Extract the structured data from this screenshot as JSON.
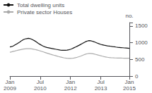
{
  "chart_data": {
    "type": "line",
    "ylabel": "no.",
    "categories": [
      "Jan\n2009",
      null,
      null,
      null,
      null,
      null,
      null,
      null,
      null,
      null,
      null,
      null,
      null,
      null,
      null,
      null,
      null,
      null,
      "Jul\n2010",
      null,
      null,
      null,
      null,
      null,
      null,
      null,
      null,
      null,
      null,
      null,
      null,
      null,
      null,
      null,
      null,
      null,
      "Jan\n2012",
      null,
      null,
      null,
      null,
      null,
      null,
      null,
      null,
      null,
      null,
      null,
      null,
      null,
      null,
      null,
      null,
      null,
      "Jul\n2013",
      null,
      null,
      null,
      null,
      null,
      null,
      null,
      null,
      null,
      null,
      null,
      null,
      null,
      null,
      null,
      null,
      "Jan\n2015"
    ],
    "series": [
      {
        "name": "Total dwelling units",
        "color": "#111111",
        "values": [
          870,
          880,
          900,
          930,
          960,
          990,
          1020,
          1060,
          1090,
          1110,
          1120,
          1130,
          1120,
          1100,
          1075,
          1045,
          1010,
          975,
          945,
          915,
          890,
          870,
          855,
          845,
          835,
          825,
          815,
          805,
          795,
          785,
          778,
          772,
          770,
          772,
          778,
          788,
          800,
          820,
          845,
          868,
          892,
          918,
          945,
          972,
          1000,
          1028,
          1048,
          1062,
          1055,
          1042,
          1025,
          1005,
          985,
          965,
          948,
          935,
          922,
          912,
          904,
          898,
          890,
          882,
          875,
          868,
          862,
          857,
          852,
          847,
          842,
          838,
          833,
          828
        ]
      },
      {
        "name": "Private sector Houses",
        "color": "#aaaaaa",
        "values": [
          715,
          725,
          738,
          750,
          763,
          775,
          787,
          798,
          807,
          814,
          818,
          820,
          817,
          812,
          804,
          794,
          782,
          768,
          752,
          736,
          720,
          704,
          688,
          672,
          656,
          641,
          626,
          612,
          598,
          584,
          571,
          559,
          548,
          540,
          534,
          530,
          528,
          532,
          540,
          550,
          563,
          578,
          596,
          616,
          636,
          655,
          668,
          676,
          676,
          670,
          660,
          648,
          635,
          621,
          607,
          594,
          582,
          572,
          563,
          556,
          551,
          547,
          544,
          542,
          540,
          539,
          538,
          537,
          536,
          535,
          534,
          533
        ]
      }
    ],
    "ylim": [
      0,
      1600
    ],
    "yticks": [
      0,
      500,
      1000,
      1500
    ],
    "grid": false,
    "legend": "upper left"
  }
}
